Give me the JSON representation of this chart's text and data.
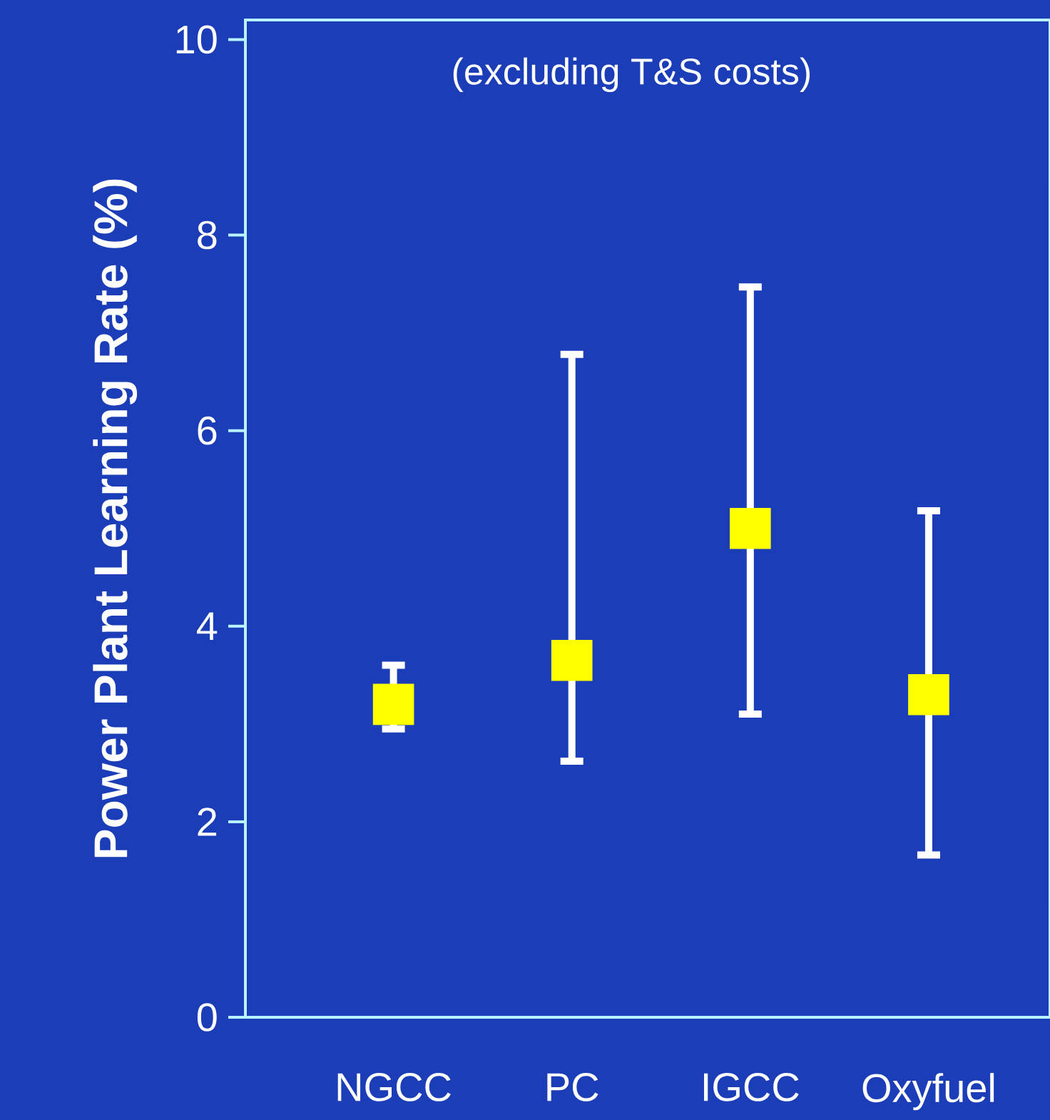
{
  "chart_data": {
    "type": "scatter",
    "ylabel": "Power Plant Learning Rate (%)",
    "annotations": [
      "(excluding T&S costs)"
    ],
    "categories": [
      "NGCC",
      "PC",
      "IGCC",
      "Oxyfuel"
    ],
    "values": [
      3.2,
      3.65,
      5.0,
      3.3
    ],
    "errors": [
      [
        2.95,
        3.6
      ],
      [
        2.62,
        6.78
      ],
      [
        3.1,
        7.47
      ],
      [
        1.66,
        5.18
      ]
    ],
    "color": "#ffff00",
    "marker": "square",
    "ylim": [
      0,
      10.2
    ],
    "yticks": [
      0,
      2,
      4,
      6,
      8,
      10
    ],
    "grid": false
  }
}
